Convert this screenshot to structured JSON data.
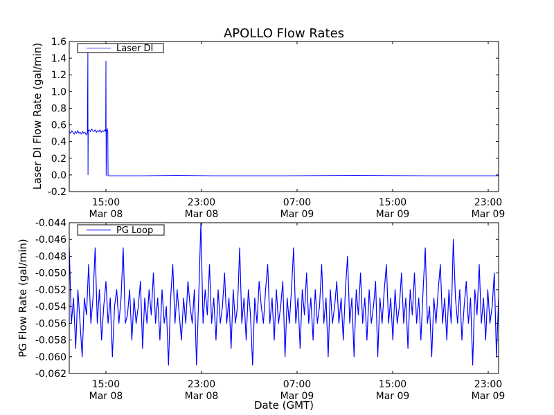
{
  "chart_data": [
    {
      "type": "line",
      "title": "APOLLO Flow Rates",
      "xlabel": "",
      "ylabel": "Laser DI Flow Rate (gal/min)",
      "ylim": [
        -0.2,
        1.6
      ],
      "yticks": [
        -0.2,
        0.0,
        0.2,
        0.4,
        0.6,
        0.8,
        1.0,
        1.2,
        1.4,
        1.6
      ],
      "ytick_labels": [
        "-0.2",
        "0.0",
        "0.2",
        "0.4",
        "0.6",
        "0.8",
        "1.0",
        "1.2",
        "1.4",
        "1.6"
      ],
      "x_units": "hours since Mar 08 00:00 GMT",
      "xlim": [
        11.93,
        47.87
      ],
      "xticks": [
        15,
        23,
        31,
        39,
        47
      ],
      "xtick_labels": [
        [
          "15:00",
          "Mar 08"
        ],
        [
          "23:00",
          "Mar 08"
        ],
        [
          "07:00",
          "Mar 09"
        ],
        [
          "15:00",
          "Mar 09"
        ],
        [
          "23:00",
          "Mar 09"
        ]
      ],
      "legend": {
        "label": "Laser DI",
        "placement": "top-left"
      },
      "color": "#0000ff",
      "series": [
        {
          "name": "Laser DI",
          "points": [
            [
              11.93,
              0.52
            ],
            [
              12.05,
              0.5
            ],
            [
              12.15,
              0.53
            ],
            [
              12.25,
              0.51
            ],
            [
              12.35,
              0.49
            ],
            [
              12.45,
              0.52
            ],
            [
              12.55,
              0.5
            ],
            [
              12.65,
              0.53
            ],
            [
              12.75,
              0.5
            ],
            [
              12.85,
              0.51
            ],
            [
              12.95,
              0.49
            ],
            [
              13.05,
              0.52
            ],
            [
              13.15,
              0.5
            ],
            [
              13.25,
              0.51
            ],
            [
              13.35,
              0.48
            ],
            [
              13.45,
              0.5
            ],
            [
              13.49,
              1.47
            ],
            [
              13.5,
              0.0
            ],
            [
              13.52,
              0.53
            ],
            [
              13.6,
              0.54
            ],
            [
              13.7,
              0.52
            ],
            [
              13.8,
              0.55
            ],
            [
              13.9,
              0.53
            ],
            [
              14.0,
              0.52
            ],
            [
              14.1,
              0.54
            ],
            [
              14.2,
              0.51
            ],
            [
              14.3,
              0.53
            ],
            [
              14.4,
              0.52
            ],
            [
              14.5,
              0.54
            ],
            [
              14.6,
              0.51
            ],
            [
              14.7,
              0.53
            ],
            [
              14.8,
              0.52
            ],
            [
              14.9,
              0.54
            ],
            [
              14.98,
              0.52
            ],
            [
              15.0,
              1.37
            ],
            [
              15.02,
              -0.01
            ],
            [
              15.06,
              0.53
            ],
            [
              15.12,
              0.55
            ],
            [
              15.16,
              0.52
            ],
            [
              15.18,
              -0.01
            ],
            [
              18.0,
              -0.01
            ],
            [
              21.0,
              -0.005
            ],
            [
              24.0,
              -0.01
            ],
            [
              30.0,
              -0.01
            ],
            [
              36.0,
              -0.005
            ],
            [
              42.0,
              -0.01
            ],
            [
              47.87,
              -0.01
            ]
          ]
        }
      ]
    },
    {
      "type": "line",
      "title": "",
      "xlabel": "Date (GMT)",
      "ylabel": "PG Flow Rate (gal/min)",
      "ylim": [
        -0.062,
        -0.044
      ],
      "yticks": [
        -0.062,
        -0.06,
        -0.058,
        -0.056,
        -0.054,
        -0.052,
        -0.05,
        -0.048,
        -0.046,
        -0.044
      ],
      "ytick_labels": [
        "-0.062",
        "-0.060",
        "-0.058",
        "-0.056",
        "-0.054",
        "-0.052",
        "-0.050",
        "-0.048",
        "-0.046",
        "-0.044"
      ],
      "x_units": "hours since Mar 08 00:00 GMT",
      "xlim": [
        11.93,
        47.87
      ],
      "xticks": [
        15,
        23,
        31,
        39,
        47
      ],
      "xtick_labels": [
        [
          "15:00",
          "Mar 08"
        ],
        [
          "23:00",
          "Mar 08"
        ],
        [
          "07:00",
          "Mar 09"
        ],
        [
          "15:00",
          "Mar 09"
        ],
        [
          "23:00",
          "Mar 09"
        ]
      ],
      "legend": {
        "label": "PG Loop",
        "placement": "top-left"
      },
      "color": "#0000ff",
      "series": [
        {
          "name": "PG Loop",
          "x_start": 11.93,
          "x_end": 47.87,
          "values": [
            -0.047,
            -0.056,
            -0.053,
            -0.059,
            -0.052,
            -0.056,
            -0.06,
            -0.053,
            -0.055,
            -0.049,
            -0.056,
            -0.053,
            -0.047,
            -0.056,
            -0.052,
            -0.058,
            -0.054,
            -0.051,
            -0.056,
            -0.053,
            -0.06,
            -0.054,
            -0.052,
            -0.056,
            -0.053,
            -0.047,
            -0.056,
            -0.055,
            -0.052,
            -0.058,
            -0.053,
            -0.056,
            -0.054,
            -0.051,
            -0.059,
            -0.053,
            -0.056,
            -0.052,
            -0.055,
            -0.05,
            -0.056,
            -0.053,
            -0.058,
            -0.052,
            -0.056,
            -0.054,
            -0.061,
            -0.053,
            -0.049,
            -0.056,
            -0.052,
            -0.055,
            -0.058,
            -0.053,
            -0.056,
            -0.051,
            -0.054,
            -0.056,
            -0.052,
            -0.061,
            -0.053,
            -0.044,
            -0.056,
            -0.052,
            -0.055,
            -0.049,
            -0.056,
            -0.053,
            -0.058,
            -0.052,
            -0.056,
            -0.054,
            -0.05,
            -0.056,
            -0.053,
            -0.059,
            -0.052,
            -0.056,
            -0.054,
            -0.047,
            -0.056,
            -0.053,
            -0.058,
            -0.052,
            -0.055,
            -0.061,
            -0.053,
            -0.056,
            -0.051,
            -0.054,
            -0.056,
            -0.052,
            -0.049,
            -0.056,
            -0.053,
            -0.058,
            -0.052,
            -0.056,
            -0.054,
            -0.051,
            -0.06,
            -0.053,
            -0.056,
            -0.052,
            -0.047,
            -0.056,
            -0.053,
            -0.059,
            -0.052,
            -0.055,
            -0.05,
            -0.056,
            -0.053,
            -0.058,
            -0.052,
            -0.056,
            -0.054,
            -0.049,
            -0.056,
            -0.053,
            -0.06,
            -0.052,
            -0.056,
            -0.054,
            -0.051,
            -0.056,
            -0.053,
            -0.058,
            -0.052,
            -0.048,
            -0.056,
            -0.053,
            -0.06,
            -0.052,
            -0.055,
            -0.05,
            -0.056,
            -0.053,
            -0.058,
            -0.052,
            -0.056,
            -0.054,
            -0.051,
            -0.06,
            -0.053,
            -0.056,
            -0.052,
            -0.049,
            -0.056,
            -0.053,
            -0.058,
            -0.052,
            -0.056,
            -0.054,
            -0.05,
            -0.056,
            -0.053,
            -0.059,
            -0.052,
            -0.055,
            -0.05,
            -0.056,
            -0.053,
            -0.058,
            -0.052,
            -0.047,
            -0.056,
            -0.054,
            -0.06,
            -0.053,
            -0.056,
            -0.052,
            -0.049,
            -0.056,
            -0.053,
            -0.058,
            -0.052,
            -0.056,
            -0.046,
            -0.053,
            -0.056,
            -0.052,
            -0.058,
            -0.054,
            -0.051,
            -0.056,
            -0.053,
            -0.061,
            -0.052,
            -0.055,
            -0.049,
            -0.056,
            -0.053,
            -0.058,
            -0.052,
            -0.056,
            -0.054,
            -0.05,
            -0.06,
            -0.053
          ]
        }
      ]
    }
  ]
}
